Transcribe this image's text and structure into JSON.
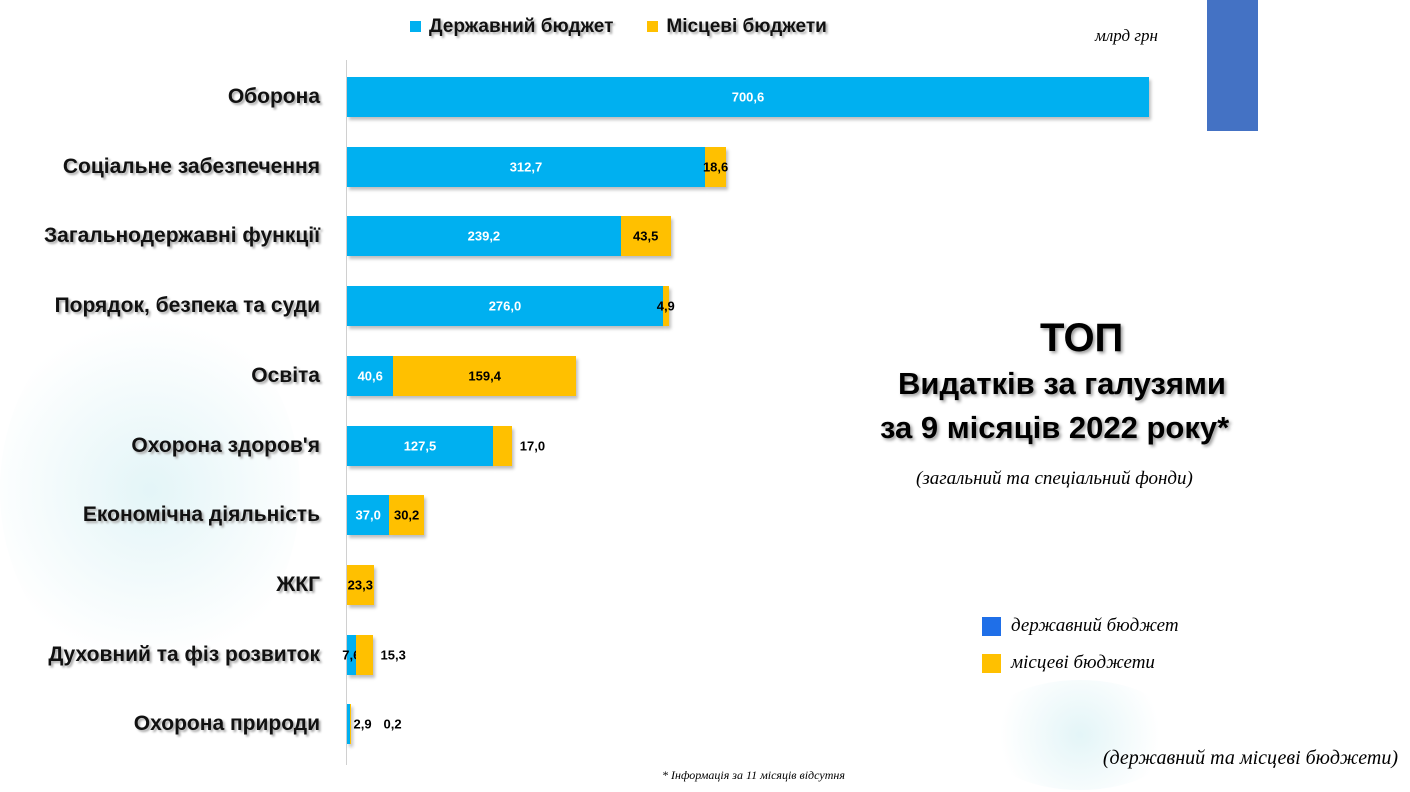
{
  "chart_data": {
    "type": "bar",
    "orientation": "horizontal",
    "stacked": true,
    "title": "ТОП",
    "subtitle_lines": [
      "Видатків за галузями",
      "за 9 місяців 2022 року*"
    ],
    "subtitle_note": "(загальний та спеціальний фонди)",
    "unit": "млрд грн",
    "categories": [
      "Оборона",
      "Соціальне забезпечення",
      "Загальнодержавні функції",
      "Порядок, безпека та суди",
      "Освіта",
      "Охорона здоров'я",
      "Економічна діяльність",
      "ЖКГ",
      "Духовний та фіз розвиток",
      "Охорона природи"
    ],
    "series": [
      {
        "name": "Державний бюджет",
        "color": "#00B0F0",
        "values": [
          700.6,
          312.7,
          239.2,
          276.0,
          40.6,
          127.5,
          37.0,
          null,
          7.6,
          2.9
        ],
        "labels": [
          "700,6",
          "312,7",
          "239,2",
          "276,0",
          "40,6",
          "127,5",
          "37,0",
          "",
          "7,6",
          "2,9"
        ]
      },
      {
        "name": "Місцеві бюджети",
        "color": "#FFC000",
        "values": [
          null,
          18.6,
          43.5,
          4.9,
          159.4,
          17.0,
          30.2,
          23.3,
          15.3,
          0.2
        ],
        "labels": [
          "",
          "18,6",
          "43,5",
          "4,9",
          "159,4",
          "17,0",
          "30,2",
          "23,3",
          "15,3",
          "0,2"
        ]
      }
    ],
    "legend_position": "top",
    "grid": false
  },
  "side_legend": {
    "items": [
      {
        "label": "державний бюджет",
        "color": "#1F6FE8"
      },
      {
        "label": "місцеві бюджети",
        "color": "#FFC000"
      }
    ]
  },
  "note": "(державний та місцеві бюджети)",
  "footnote": "* Інформація за 11 місяців відсутня",
  "deco_color": "#4472C4"
}
